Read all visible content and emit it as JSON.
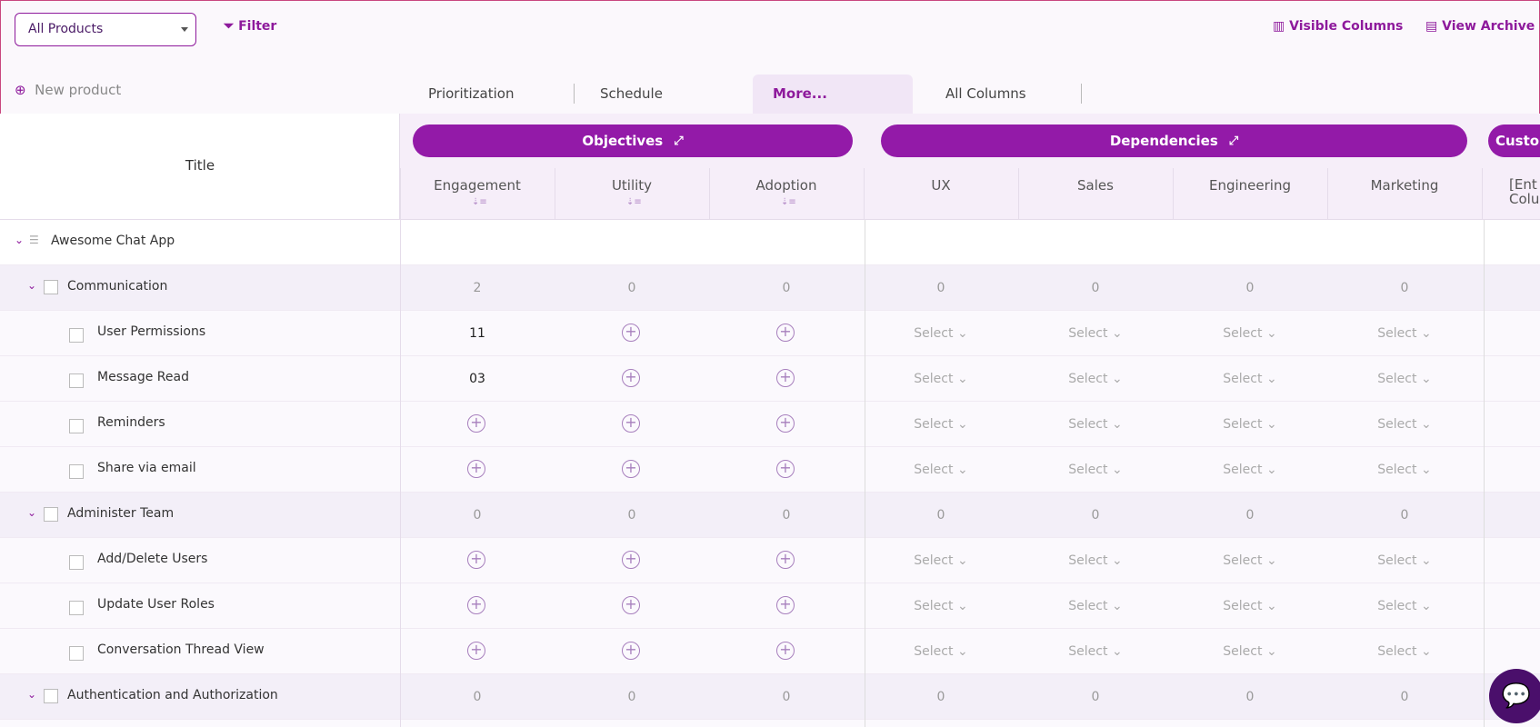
{
  "toolbar": {
    "product_select": "All Products",
    "filter": "Filter",
    "visible_columns": "Visible Columns",
    "view_archive": "View Archive"
  },
  "new_product": "New product",
  "tabs": [
    "Prioritization",
    "Schedule",
    "More...",
    "All Columns"
  ],
  "table": {
    "title_header": "Title",
    "groups": [
      "Objectives",
      "Dependencies",
      "Custon"
    ],
    "columns": [
      "Engagement",
      "Utility",
      "Adoption",
      "UX",
      "Sales",
      "Engineering",
      "Marketing",
      "[Ent Colum"
    ],
    "rows": [
      {
        "kind": "app",
        "title": "Awesome Chat App"
      },
      {
        "kind": "group",
        "title": "Communication",
        "cells": [
          2,
          0,
          0,
          0,
          0,
          0,
          0
        ]
      },
      {
        "kind": "item",
        "title": "User Permissions",
        "cells": [
          11,
          null,
          null,
          "Select",
          "Select",
          "Select",
          "Select"
        ]
      },
      {
        "kind": "item",
        "title": "Message Read",
        "cells": [
          "03",
          null,
          null,
          "Select",
          "Select",
          "Select",
          "Select"
        ]
      },
      {
        "kind": "item",
        "title": "Reminders",
        "cells": [
          null,
          null,
          null,
          "Select",
          "Select",
          "Select",
          "Select"
        ]
      },
      {
        "kind": "item",
        "title": "Share via email",
        "cells": [
          null,
          null,
          null,
          "Select",
          "Select",
          "Select",
          "Select"
        ]
      },
      {
        "kind": "group",
        "title": "Administer Team",
        "cells": [
          0,
          0,
          0,
          0,
          0,
          0,
          0
        ]
      },
      {
        "kind": "item",
        "title": "Add/Delete Users",
        "cells": [
          null,
          null,
          null,
          "Select",
          "Select",
          "Select",
          "Select"
        ]
      },
      {
        "kind": "item",
        "title": "Update User Roles",
        "cells": [
          null,
          null,
          null,
          "Select",
          "Select",
          "Select",
          "Select"
        ]
      },
      {
        "kind": "item",
        "title": "Conversation Thread View",
        "cells": [
          null,
          null,
          null,
          "Select",
          "Select",
          "Select",
          "Select"
        ]
      },
      {
        "kind": "group",
        "title": "Authentication and Authorization",
        "cells": [
          0,
          0,
          0,
          0,
          0,
          0,
          0
        ]
      }
    ]
  }
}
